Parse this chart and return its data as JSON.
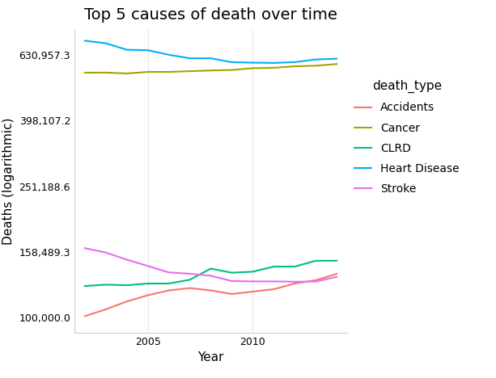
{
  "title": "Top 5 causes of death over time",
  "xlabel": "Year",
  "ylabel": "Deaths (logarithmic)",
  "years": [
    2002,
    2003,
    2004,
    2005,
    2006,
    2007,
    2008,
    2009,
    2010,
    2011,
    2012,
    2013,
    2014
  ],
  "series": {
    "Accidents": [
      101000,
      106000,
      112000,
      117000,
      121000,
      123000,
      121000,
      118000,
      120000,
      122000,
      127000,
      130000,
      136000
    ],
    "Cancer": [
      556900,
      557300,
      553900,
      560000,
      560000,
      562900,
      565700,
      567600,
      574700,
      576500,
      582600,
      584900,
      591700
    ],
    "CLRD": [
      124800,
      126000,
      125500,
      127000,
      127000,
      130400,
      141000,
      137000,
      138000,
      143000,
      143000,
      149000,
      149000
    ],
    "Heart Disease": [
      696900,
      684400,
      654100,
      652000,
      631600,
      616100,
      616000,
      599400,
      597700,
      596300,
      599700,
      611100,
      614300
    ],
    "Stroke": [
      162700,
      157800,
      150100,
      143600,
      137300,
      136000,
      134100,
      129200,
      128900,
      128900,
      128600,
      128800,
      133100
    ]
  },
  "colors": {
    "Accidents": "#F8766D",
    "Cancer": "#A3A500",
    "CLRD": "#00BF7D",
    "Heart Disease": "#00B0F6",
    "Stroke": "#E76BF3"
  },
  "yticks": [
    100000.0,
    158489.3,
    251188.6,
    398107.2,
    630957.3
  ],
  "ytick_labels": [
    "100,000.0",
    "158,489.3",
    "251,188.6",
    "398,107.2",
    "630,957.3"
  ],
  "ylim": [
    90000,
    750000
  ],
  "xlim": [
    2001.5,
    2014.5
  ],
  "xticks": [
    2005,
    2010
  ],
  "background_color": "#ffffff",
  "panel_color": "#ffffff",
  "grid_color": "#e8e8e8",
  "legend_title": "death_type",
  "title_fontsize": 14,
  "axis_label_fontsize": 11,
  "tick_fontsize": 9,
  "legend_fontsize": 10,
  "line_width": 1.5
}
